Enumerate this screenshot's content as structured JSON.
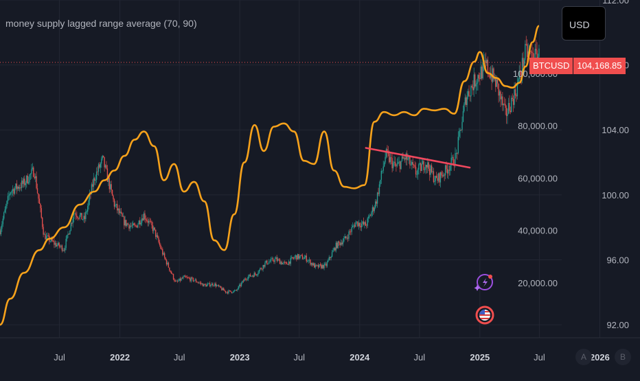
{
  "indicator": {
    "title": "money supply lagged range average (70, 90)"
  },
  "currency_label": "USD",
  "price_tag": {
    "symbol": "BTCUSD",
    "price": "104,168.85"
  },
  "axis_buttons": {
    "a": "A",
    "b": "B"
  },
  "colors": {
    "background": "#161a25",
    "grid": "#232733",
    "money_supply_line": "#f7a21b",
    "trendline": "#f0485e",
    "candle_up": "#26a69a",
    "candle_down": "#ef5350",
    "price_tag": "#f04e4e"
  },
  "chart_data": {
    "type": "line",
    "x_axis": {
      "ticks": [
        {
          "label": "Jul",
          "date": "2021-07-01"
        },
        {
          "label": "2022",
          "date": "2022-01-01"
        },
        {
          "label": "Jul",
          "date": "2022-07-01"
        },
        {
          "label": "2023",
          "date": "2023-01-01"
        },
        {
          "label": "Jul",
          "date": "2023-07-01"
        },
        {
          "label": "2024",
          "date": "2024-01-01"
        },
        {
          "label": "Jul",
          "date": "2024-07-01"
        },
        {
          "label": "2025",
          "date": "2025-01-01"
        },
        {
          "label": "Jul",
          "date": "2025-07-01"
        },
        {
          "label": "2026",
          "date": "2026-01-01"
        }
      ],
      "bold_ticks": [
        "2022",
        "2023",
        "2024",
        "2025",
        "2026"
      ]
    },
    "left_axis": {
      "name": "BTCUSD",
      "ylim": [
        -1000,
        128000
      ],
      "tick_values": [
        20000,
        40000,
        60000,
        80000,
        100000
      ],
      "tick_labels": [
        "20,000.00",
        "40,000.00",
        "60,000.00",
        "80,000.00",
        "100,000.00"
      ]
    },
    "right_axis": {
      "name": "money supply lagged range average",
      "ylim": [
        91.2,
        112.0
      ],
      "tick_values": [
        92,
        96,
        100,
        104,
        108,
        112
      ],
      "tick_labels": [
        "92.00",
        "96.00",
        "100.00",
        "104.00",
        "108.00",
        "112.00"
      ]
    },
    "current_price": 104168.85,
    "series": [
      {
        "name": "money supply lagged range average",
        "axis": "right",
        "x": [
          "2021-01-01",
          "2021-02-01",
          "2021-03-15",
          "2021-05-01",
          "2021-06-01",
          "2021-07-15",
          "2021-09-01",
          "2021-10-15",
          "2021-11-15",
          "2021-12-15",
          "2022-01-15",
          "2022-02-15",
          "2022-03-15",
          "2022-04-15",
          "2022-05-15",
          "2022-06-15",
          "2022-07-15",
          "2022-08-15",
          "2022-09-15",
          "2022-10-15",
          "2022-11-15",
          "2022-12-15",
          "2023-01-15",
          "2023-02-15",
          "2023-03-15",
          "2023-04-15",
          "2023-05-15",
          "2023-06-15",
          "2023-07-15",
          "2023-08-15",
          "2023-09-15",
          "2023-10-15",
          "2023-11-15",
          "2023-12-15",
          "2024-01-15",
          "2024-02-15",
          "2024-03-15",
          "2024-04-15",
          "2024-05-15",
          "2024-06-15",
          "2024-07-15",
          "2024-08-15",
          "2024-09-15",
          "2024-10-15",
          "2024-11-15",
          "2024-12-15",
          "2025-01-01",
          "2025-01-25",
          "2025-02-20",
          "2025-03-20",
          "2025-04-10",
          "2025-05-01",
          "2025-05-20",
          "2025-06-10",
          "2025-06-30"
        ],
        "values": [
          92.0,
          93.6,
          95.2,
          96.6,
          97.3,
          98.0,
          99.4,
          100.2,
          100.9,
          101.5,
          102.4,
          103.4,
          103.9,
          103.0,
          100.9,
          101.9,
          100.2,
          100.8,
          99.6,
          97.2,
          96.6,
          98.8,
          102.0,
          104.3,
          102.7,
          104.2,
          104.4,
          103.9,
          102.1,
          101.9,
          103.9,
          101.5,
          100.5,
          100.4,
          100.6,
          104.5,
          105.1,
          104.9,
          105.1,
          104.9,
          105.3,
          105.2,
          105.3,
          105.0,
          107.0,
          108.2,
          108.8,
          107.5,
          107.2,
          106.7,
          106.6,
          106.9,
          107.9,
          109.4,
          110.4
        ]
      },
      {
        "name": "BTCUSD",
        "axis": "left",
        "x": [
          "2021-01-01",
          "2021-02-01",
          "2021-03-15",
          "2021-04-15",
          "2021-05-15",
          "2021-06-15",
          "2021-07-15",
          "2021-08-15",
          "2021-09-15",
          "2021-10-15",
          "2021-11-10",
          "2021-12-15",
          "2022-01-15",
          "2022-02-15",
          "2022-03-15",
          "2022-04-15",
          "2022-05-15",
          "2022-06-20",
          "2022-07-15",
          "2022-08-15",
          "2022-09-15",
          "2022-10-15",
          "2022-11-20",
          "2022-12-20",
          "2023-01-20",
          "2023-02-20",
          "2023-03-20",
          "2023-04-20",
          "2023-05-20",
          "2023-06-20",
          "2023-07-20",
          "2023-08-20",
          "2023-09-20",
          "2023-10-20",
          "2023-11-20",
          "2023-12-20",
          "2024-01-20",
          "2024-02-20",
          "2024-03-20",
          "2024-04-20",
          "2024-05-20",
          "2024-06-20",
          "2024-07-20",
          "2024-08-20",
          "2024-09-20",
          "2024-10-20",
          "2024-11-20",
          "2024-12-20",
          "2025-01-20",
          "2025-02-20",
          "2025-03-20",
          "2025-04-20",
          "2025-05-20",
          "2025-06-20",
          "2025-06-30"
        ],
        "values": [
          40000,
          55000,
          58000,
          63000,
          38000,
          35000,
          33000,
          47000,
          44000,
          60000,
          67000,
          50000,
          43000,
          41000,
          46000,
          40000,
          30000,
          20000,
          22000,
          21000,
          19000,
          19500,
          16500,
          16800,
          22000,
          23500,
          27500,
          29000,
          27000,
          30000,
          29500,
          26000,
          26500,
          34000,
          37000,
          43000,
          42000,
          51000,
          69000,
          64000,
          68000,
          62000,
          66000,
          59000,
          63000,
          68000,
          91000,
          98000,
          103000,
          96000,
          84000,
          93000,
          108000,
          106000,
          107000
        ]
      },
      {
        "name": "trendline",
        "axis": "left",
        "x": [
          "2024-01-20",
          "2024-12-01"
        ],
        "values": [
          71500,
          64000
        ]
      }
    ]
  }
}
